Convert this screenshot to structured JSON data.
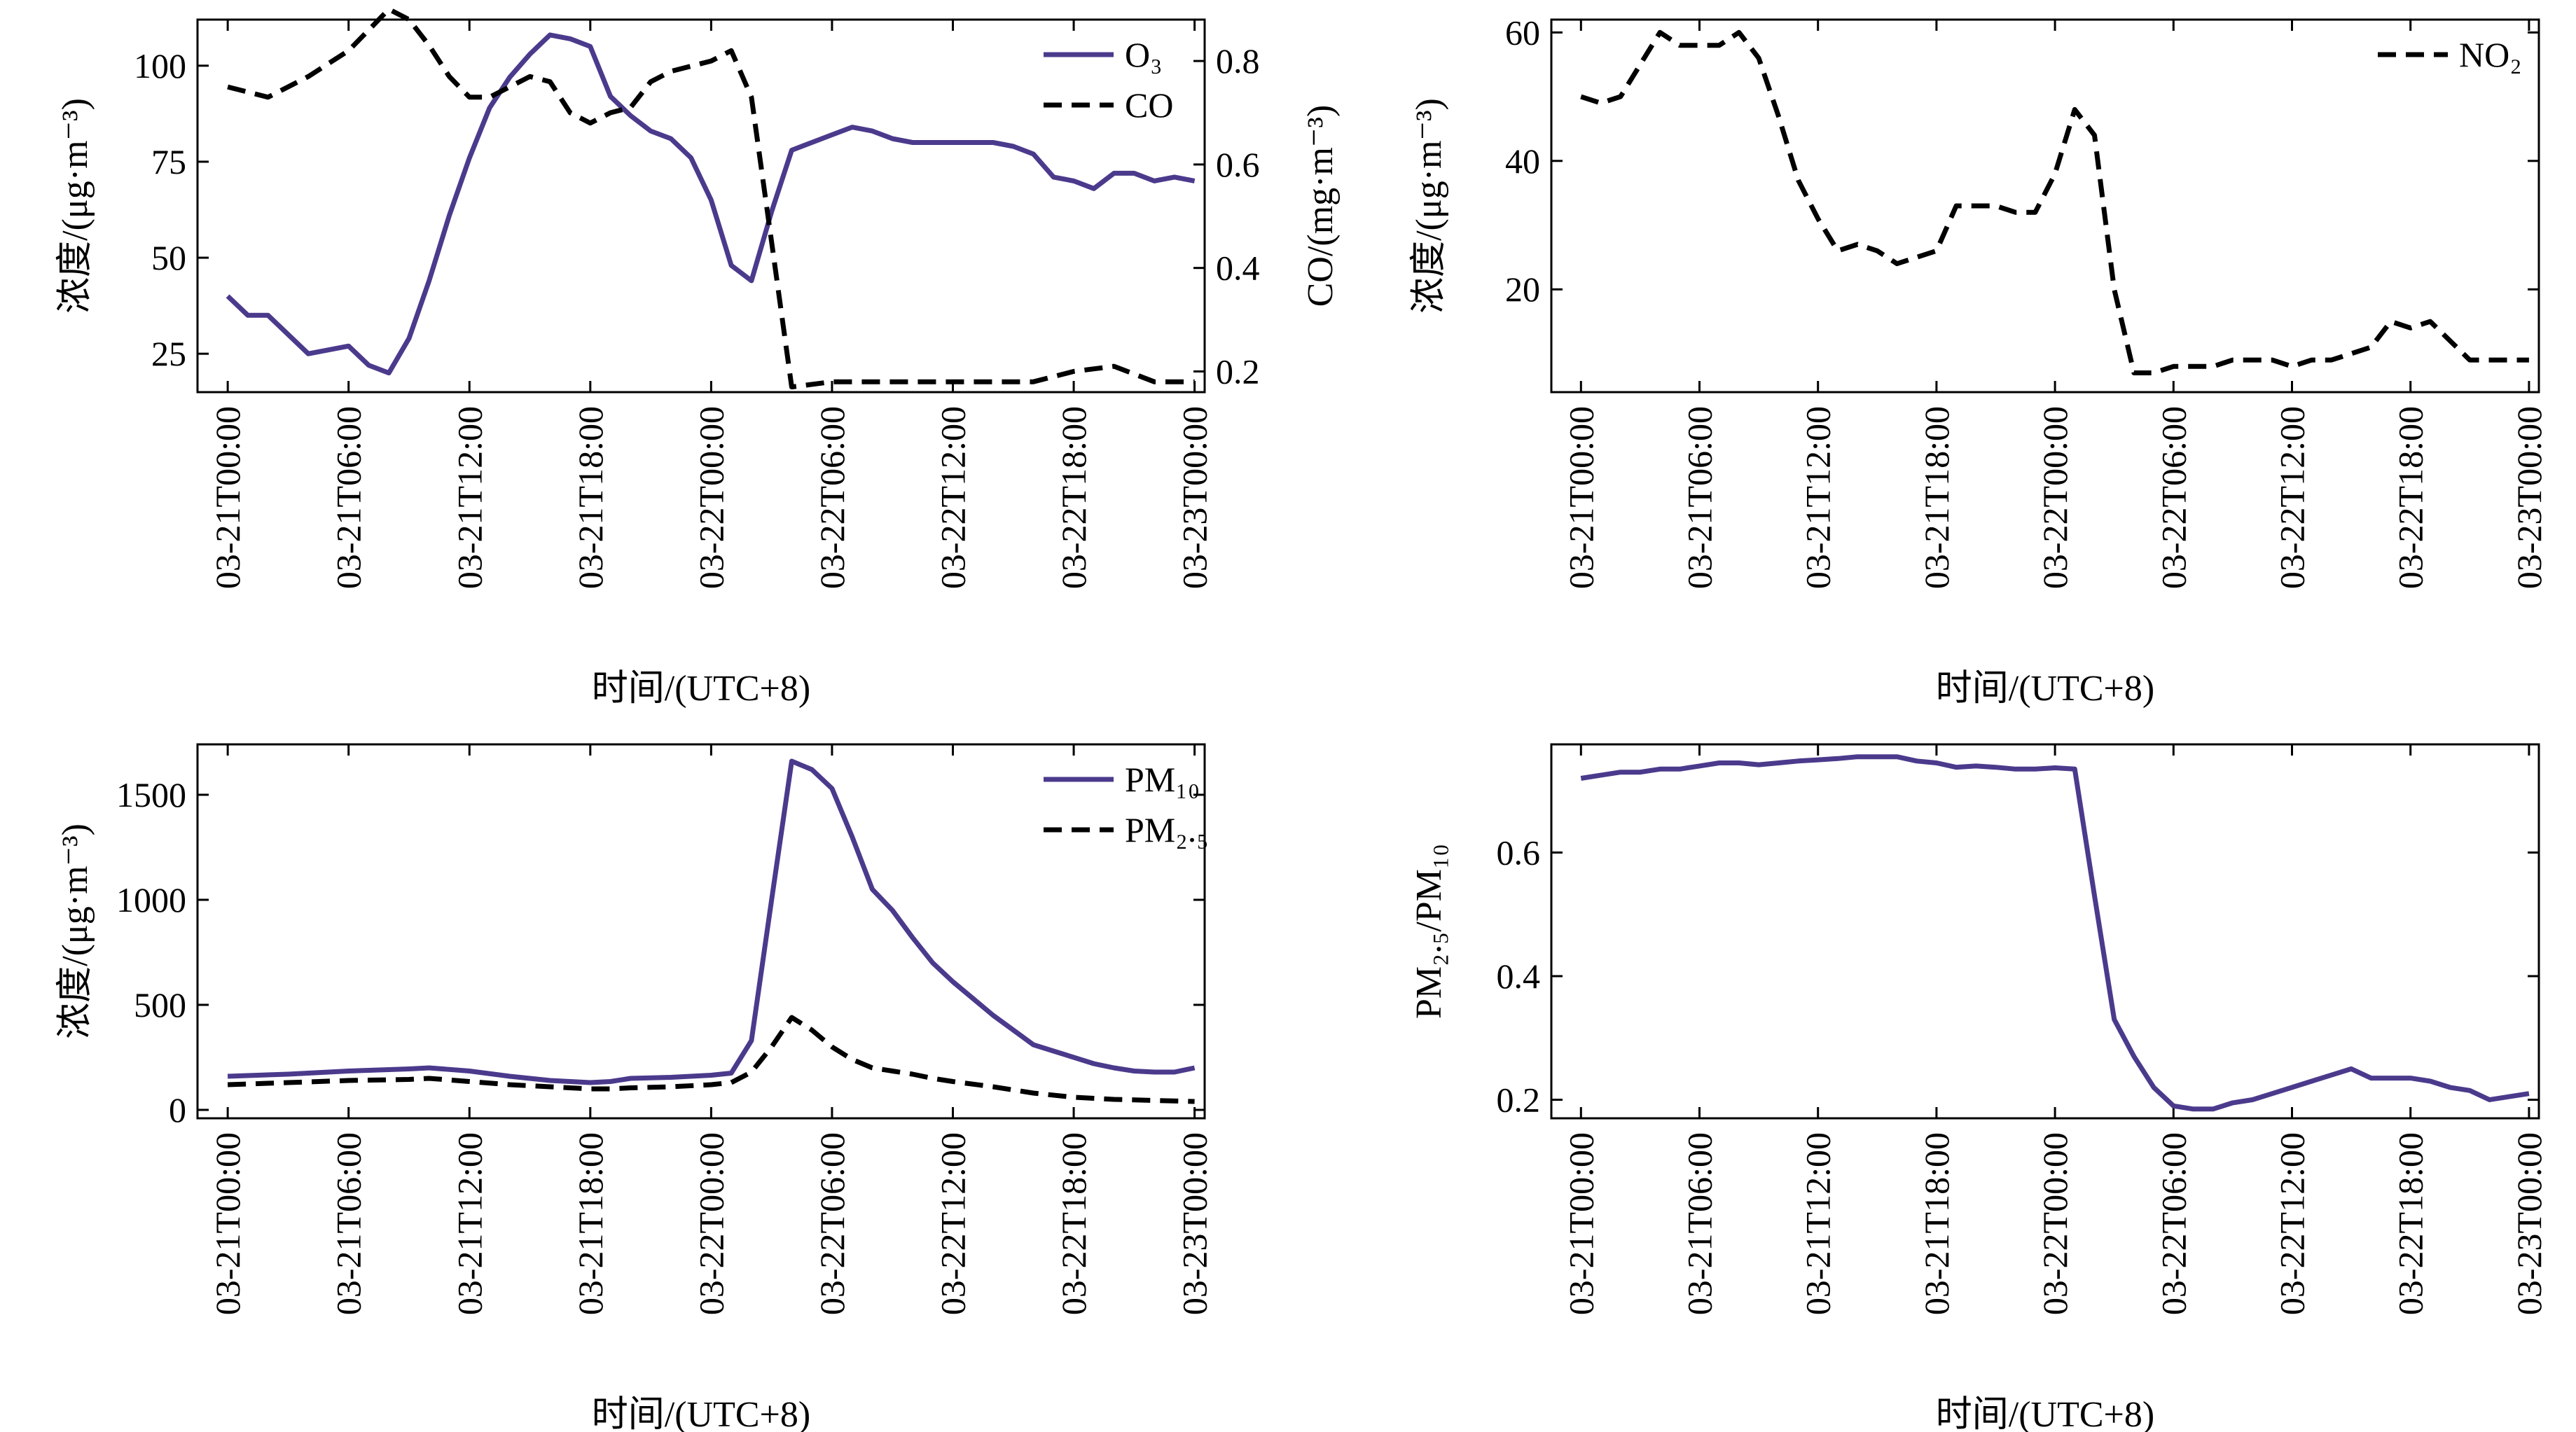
{
  "colors": {
    "primary": "#4b3a8c",
    "dashed": "#000000",
    "axis": "#000000"
  },
  "chart_data": [
    {
      "type": "line",
      "panel": "top-left",
      "xlabel": "时间/(UTC+8)",
      "ylabel": "浓度/(μg·m⁻³)",
      "y2label": "CO/(mg·m⁻³)",
      "x_tick_labels": [
        "03-21T00:00",
        "03-21T06:00",
        "03-21T12:00",
        "03-21T18:00",
        "03-22T00:00",
        "03-22T06:00",
        "03-22T12:00",
        "03-22T18:00",
        "03-23T00:00"
      ],
      "xlim_hours": [
        -1.5,
        48.5
      ],
      "ylim": [
        15,
        112
      ],
      "y_ticks": [
        25,
        50,
        75,
        100
      ],
      "y2lim": [
        0.16,
        0.88
      ],
      "y2_ticks": [
        0.2,
        0.4,
        0.6,
        0.8
      ],
      "grid": false,
      "legend_position": "top-right",
      "series": [
        {
          "name": "O₃",
          "axis": "left",
          "style": "solid",
          "x": [
            0,
            1,
            2,
            4,
            6,
            7,
            8,
            9,
            10,
            11,
            12,
            13,
            14,
            15,
            16,
            17,
            18,
            19,
            20,
            21,
            22,
            23,
            24,
            25,
            26,
            27,
            28,
            30,
            31,
            32,
            33,
            34,
            35,
            36,
            37,
            38,
            39,
            40,
            41,
            42,
            43,
            44,
            45,
            46,
            47,
            48
          ],
          "y": [
            40,
            35,
            35,
            25,
            27,
            22,
            20,
            29,
            44,
            61,
            76,
            89,
            97,
            103,
            108,
            107,
            105,
            92,
            87,
            83,
            81,
            76,
            65,
            48,
            44,
            62,
            78,
            82,
            84,
            83,
            81,
            80,
            80,
            80,
            80,
            80,
            79,
            77,
            71,
            70,
            68,
            72,
            72,
            70,
            71,
            70
          ]
        },
        {
          "name": "CO",
          "axis": "right",
          "style": "dashed",
          "x": [
            0,
            2,
            4,
            6,
            7,
            8,
            9,
            10,
            11,
            12,
            13,
            14,
            15,
            16,
            17,
            18,
            19,
            20,
            21,
            22,
            23,
            24,
            25,
            26,
            27,
            28,
            30,
            32,
            34,
            36,
            38,
            40,
            42,
            44,
            46,
            48
          ],
          "y": [
            0.75,
            0.73,
            0.77,
            0.82,
            0.86,
            0.9,
            0.88,
            0.83,
            0.77,
            0.73,
            0.73,
            0.75,
            0.77,
            0.76,
            0.7,
            0.68,
            0.7,
            0.71,
            0.76,
            0.78,
            0.79,
            0.8,
            0.82,
            0.73,
            0.45,
            0.17,
            0.18,
            0.18,
            0.18,
            0.18,
            0.18,
            0.18,
            0.2,
            0.21,
            0.18,
            0.18
          ]
        }
      ]
    },
    {
      "type": "line",
      "panel": "top-right",
      "xlabel": "时间/(UTC+8)",
      "ylabel": "浓度/(μg·m⁻³)",
      "x_tick_labels": [
        "03-21T00:00",
        "03-21T06:00",
        "03-21T12:00",
        "03-21T18:00",
        "03-22T00:00",
        "03-22T06:00",
        "03-22T12:00",
        "03-22T18:00",
        "03-23T00:00"
      ],
      "xlim_hours": [
        -1.5,
        48.5
      ],
      "ylim": [
        4,
        62
      ],
      "y_ticks": [
        20,
        40,
        60
      ],
      "grid": false,
      "legend_position": "top-right",
      "series": [
        {
          "name": "NO₂",
          "style": "dashed",
          "x": [
            0,
            1,
            2,
            3,
            4,
            5,
            6,
            7,
            8,
            9,
            10,
            11,
            12,
            13,
            14,
            15,
            16,
            17,
            18,
            19,
            20,
            21,
            22,
            23,
            24,
            25,
            26,
            27,
            28,
            29,
            30,
            31,
            32,
            33,
            34,
            35,
            36,
            37,
            38,
            39,
            40,
            41,
            42,
            43,
            44,
            45,
            46,
            47,
            48
          ],
          "y": [
            50,
            49,
            50,
            55,
            60,
            58,
            58,
            58,
            60,
            56,
            47,
            37,
            31,
            26,
            27,
            26,
            24,
            25,
            26,
            33,
            33,
            33,
            32,
            32,
            38,
            48,
            44,
            20,
            7,
            7,
            8,
            8,
            8,
            9,
            9,
            9,
            8,
            9,
            9,
            10,
            11,
            15,
            14,
            15,
            12,
            9,
            9,
            9,
            9
          ]
        }
      ]
    },
    {
      "type": "line",
      "panel": "bottom-left",
      "xlabel": "时间/(UTC+8)",
      "ylabel": "浓度/(μg·m⁻³)",
      "x_tick_labels": [
        "03-21T00:00",
        "03-21T06:00",
        "03-21T12:00",
        "03-21T18:00",
        "03-22T00:00",
        "03-22T06:00",
        "03-22T12:00",
        "03-22T18:00",
        "03-23T00:00"
      ],
      "xlim_hours": [
        -1.5,
        48.5
      ],
      "ylim": [
        -40,
        1740
      ],
      "y_ticks": [
        0,
        500,
        1000,
        1500
      ],
      "grid": false,
      "legend_position": "top-right",
      "series": [
        {
          "name": "PM₁₀",
          "style": "solid",
          "x": [
            0,
            3,
            6,
            9,
            10,
            12,
            14,
            16,
            18,
            19,
            20,
            22,
            24,
            25,
            26,
            27,
            28,
            29,
            30,
            31,
            32,
            33,
            34,
            35,
            36,
            37,
            38,
            39,
            40,
            41,
            42,
            43,
            44,
            45,
            46,
            47,
            48
          ],
          "y": [
            160,
            170,
            185,
            195,
            200,
            185,
            160,
            140,
            130,
            135,
            150,
            155,
            165,
            175,
            330,
            1000,
            1660,
            1620,
            1530,
            1300,
            1050,
            950,
            820,
            700,
            610,
            530,
            450,
            380,
            310,
            280,
            250,
            220,
            200,
            185,
            180,
            180,
            200
          ]
        },
        {
          "name": "PM₂.₅",
          "style": "dashed",
          "x": [
            0,
            3,
            6,
            9,
            10,
            12,
            14,
            16,
            18,
            19,
            20,
            22,
            24,
            25,
            26,
            27,
            28,
            29,
            30,
            31,
            32,
            33,
            34,
            35,
            36,
            38,
            40,
            42,
            44,
            46,
            48
          ],
          "y": [
            120,
            130,
            140,
            145,
            150,
            135,
            120,
            110,
            100,
            100,
            105,
            110,
            120,
            130,
            180,
            300,
            440,
            380,
            300,
            240,
            200,
            185,
            170,
            150,
            135,
            110,
            80,
            60,
            50,
            45,
            40
          ]
        }
      ]
    },
    {
      "type": "line",
      "panel": "bottom-right",
      "xlabel": "时间/(UTC+8)",
      "ylabel": "PM₂.₅/PM₁₀",
      "x_tick_labels": [
        "03-21T00:00",
        "03-21T06:00",
        "03-21T12:00",
        "03-21T18:00",
        "03-22T00:00",
        "03-22T06:00",
        "03-22T12:00",
        "03-22T18:00",
        "03-23T00:00"
      ],
      "xlim_hours": [
        -1.5,
        48.5
      ],
      "ylim": [
        0.17,
        0.775
      ],
      "y_ticks": [
        0.2,
        0.4,
        0.6
      ],
      "grid": false,
      "legend_position": "none",
      "series": [
        {
          "name": "",
          "style": "solid",
          "x": [
            0,
            1,
            2,
            3,
            4,
            5,
            6,
            7,
            8,
            9,
            10,
            11,
            12,
            13,
            14,
            15,
            16,
            17,
            18,
            19,
            20,
            21,
            22,
            23,
            24,
            25,
            26,
            27,
            28,
            29,
            30,
            31,
            32,
            33,
            34,
            35,
            36,
            37,
            38,
            39,
            40,
            41,
            42,
            43,
            44,
            45,
            46,
            47,
            48
          ],
          "y": [
            0.72,
            0.725,
            0.73,
            0.73,
            0.735,
            0.735,
            0.74,
            0.745,
            0.745,
            0.742,
            0.745,
            0.748,
            0.75,
            0.752,
            0.755,
            0.755,
            0.755,
            0.748,
            0.745,
            0.738,
            0.74,
            0.738,
            0.735,
            0.735,
            0.737,
            0.735,
            0.53,
            0.33,
            0.27,
            0.22,
            0.19,
            0.185,
            0.185,
            0.195,
            0.2,
            0.21,
            0.22,
            0.23,
            0.24,
            0.25,
            0.235,
            0.235,
            0.235,
            0.23,
            0.22,
            0.215,
            0.2,
            0.205,
            0.21
          ]
        }
      ]
    }
  ]
}
